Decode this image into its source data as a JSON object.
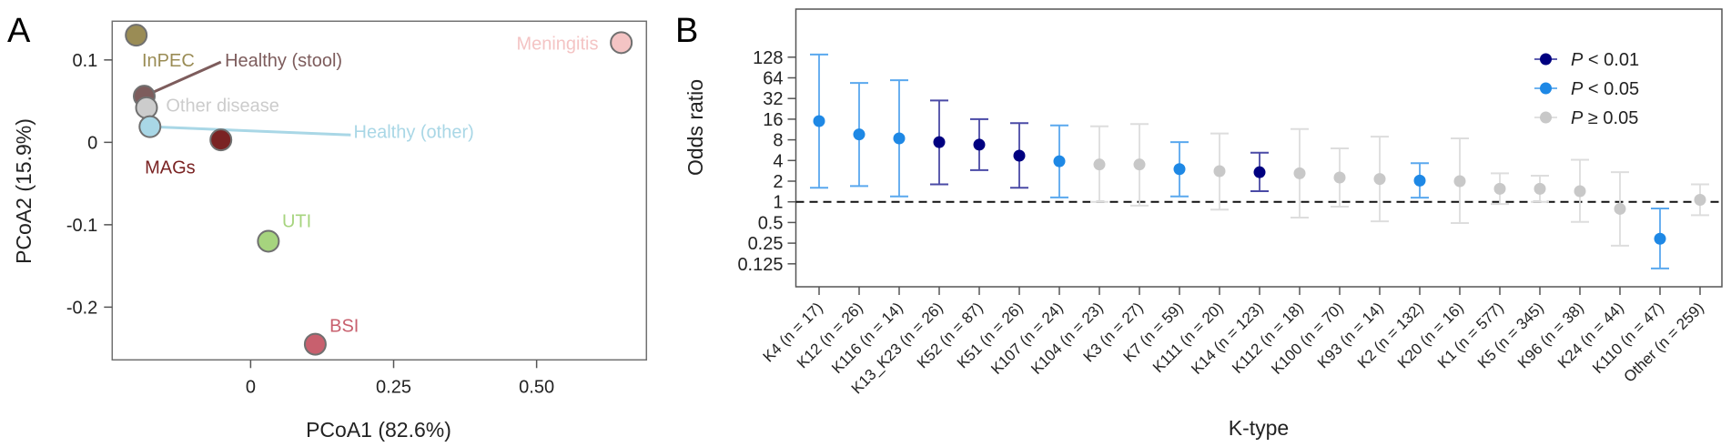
{
  "panels": {
    "a": "A",
    "b": "B"
  },
  "chart_data": [
    {
      "type": "scatter",
      "panel": "A",
      "xlabel": "PCoA1 (82.6%)",
      "ylabel": "PCoA2 (15.9%)",
      "xlim": [
        -0.242,
        0.692
      ],
      "ylim": [
        -0.264,
        0.147
      ],
      "xticks": [
        {
          "v": 0,
          "label": "0"
        },
        {
          "v": 0.25,
          "label": "0.25"
        },
        {
          "v": 0.5,
          "label": "0.50"
        }
      ],
      "yticks": [
        {
          "v": 0.1,
          "label": "0.1"
        },
        {
          "v": 0,
          "label": "0"
        },
        {
          "v": -0.1,
          "label": "-0.1"
        },
        {
          "v": -0.2,
          "label": "-0.2"
        }
      ],
      "grid": false,
      "points": [
        {
          "label": "InPEC",
          "x": -0.2,
          "y": 0.13,
          "color": "#9a8c55"
        },
        {
          "label": "Healthy (stool)",
          "x": -0.186,
          "y": 0.056,
          "color": "#7d5c5c"
        },
        {
          "label": "Other disease",
          "x": -0.182,
          "y": 0.042,
          "color": "#cccccc"
        },
        {
          "label": "Healthy (other)",
          "x": -0.176,
          "y": 0.019,
          "color": "#a9d7e6"
        },
        {
          "label": "MAGs",
          "x": -0.052,
          "y": 0.003,
          "color": "#7a2323"
        },
        {
          "label": "UTI",
          "x": 0.031,
          "y": -0.12,
          "color": "#a6d47e"
        },
        {
          "label": "BSI",
          "x": 0.113,
          "y": -0.245,
          "color": "#c8606e"
        },
        {
          "label": "Meningitis",
          "x": 0.648,
          "y": 0.121,
          "color": "#f4c4c4"
        }
      ]
    },
    {
      "type": "errorbar",
      "panel": "B",
      "xlabel": "K-type",
      "ylabel": "Odds ratio",
      "yscale": "log2",
      "ylim": [
        0.08,
        300
      ],
      "yticks": [
        "128",
        "64",
        "32",
        "16",
        "8",
        "4",
        "2",
        "1",
        "0.5",
        "0.25",
        "0.125"
      ],
      "reference_line": 1,
      "grid": false,
      "legend_position": "top-right",
      "legend": [
        {
          "key": "p01",
          "label": "P < 0.01",
          "color": "#000080"
        },
        {
          "key": "p05",
          "label": "P < 0.05",
          "color": "#1e88e5"
        },
        {
          "key": "ns",
          "label": "P ≥ 0.05",
          "color": "#c8c8c8"
        }
      ],
      "categories": [
        {
          "label": "K4 (n = 17)",
          "or": 15,
          "lo": 1.6,
          "hi": 140,
          "sig": "p05"
        },
        {
          "label": "K12 (n = 26)",
          "or": 9.6,
          "lo": 1.7,
          "hi": 54,
          "sig": "p05"
        },
        {
          "label": "K116 (n = 14)",
          "or": 8.4,
          "lo": 1.2,
          "hi": 59,
          "sig": "p05"
        },
        {
          "label": "K13_K23 (n = 26)",
          "or": 7.4,
          "lo": 1.8,
          "hi": 30,
          "sig": "p01"
        },
        {
          "label": "K52 (n = 87)",
          "or": 6.8,
          "lo": 2.9,
          "hi": 16,
          "sig": "p01"
        },
        {
          "label": "K51 (n = 26)",
          "or": 4.7,
          "lo": 1.6,
          "hi": 14,
          "sig": "p01"
        },
        {
          "label": "K107 (n = 24)",
          "or": 3.9,
          "lo": 1.16,
          "hi": 13,
          "sig": "p05"
        },
        {
          "label": "K104 (n = 23)",
          "or": 3.5,
          "lo": 1.0,
          "hi": 12.6,
          "sig": "ns"
        },
        {
          "label": "K3 (n = 27)",
          "or": 3.5,
          "lo": 0.88,
          "hi": 13.6,
          "sig": "ns"
        },
        {
          "label": "K7 (n = 59)",
          "or": 3.0,
          "lo": 1.2,
          "hi": 7.4,
          "sig": "p05"
        },
        {
          "label": "K111 (n = 20)",
          "or": 2.8,
          "lo": 0.77,
          "hi": 9.9,
          "sig": "ns"
        },
        {
          "label": "K14 (n = 123)",
          "or": 2.7,
          "lo": 1.43,
          "hi": 5.2,
          "sig": "p01"
        },
        {
          "label": "K112 (n = 18)",
          "or": 2.6,
          "lo": 0.59,
          "hi": 11.5,
          "sig": "ns"
        },
        {
          "label": "K100 (n = 70)",
          "or": 2.26,
          "lo": 0.85,
          "hi": 6.0,
          "sig": "ns"
        },
        {
          "label": "K93 (n = 14)",
          "or": 2.15,
          "lo": 0.52,
          "hi": 8.9,
          "sig": "ns"
        },
        {
          "label": "K2 (n = 132)",
          "or": 2.04,
          "lo": 1.15,
          "hi": 3.65,
          "sig": "p05"
        },
        {
          "label": "K20 (n = 16)",
          "or": 2.0,
          "lo": 0.49,
          "hi": 8.4,
          "sig": "ns"
        },
        {
          "label": "K1 (n = 577)",
          "or": 1.55,
          "lo": 0.93,
          "hi": 2.6,
          "sig": "ns"
        },
        {
          "label": "K5 (n = 345)",
          "or": 1.55,
          "lo": 1.0,
          "hi": 2.4,
          "sig": "ns"
        },
        {
          "label": "K96 (n = 38)",
          "or": 1.43,
          "lo": 0.51,
          "hi": 4.1,
          "sig": "ns"
        },
        {
          "label": "K24 (n = 44)",
          "or": 0.79,
          "lo": 0.23,
          "hi": 2.7,
          "sig": "ns"
        },
        {
          "label": "K110 (n = 47)",
          "or": 0.29,
          "lo": 0.107,
          "hi": 0.8,
          "sig": "p05"
        },
        {
          "label": "Other (n = 259)",
          "or": 1.07,
          "lo": 0.64,
          "hi": 1.8,
          "sig": "ns"
        }
      ]
    }
  ]
}
